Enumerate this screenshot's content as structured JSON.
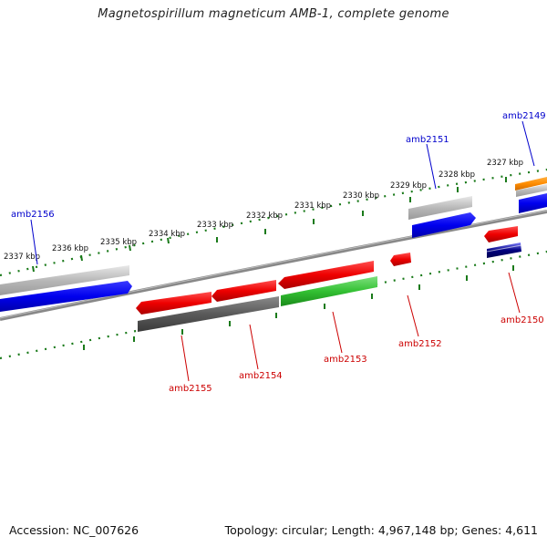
{
  "title": "Magnetospirillum magneticum AMB-1, complete genome",
  "footer": {
    "accession": "Accession: NC_007626",
    "summary": "Topology: circular; Length: 4,967,148 bp; Genes: 4,611"
  },
  "colors": {
    "forward_label": "#0000cc",
    "reverse_label": "#cc0000",
    "tick": "#1a7a1a",
    "backbone": "#888888"
  },
  "ticks": [
    "2337 kbp",
    "2336 kbp",
    "2335 kbp",
    "2334 kbp",
    "2333 kbp",
    "2332 kbp",
    "2331 kbp",
    "2330 kbp",
    "2329 kbp",
    "2328 kbp",
    "2327 kbp"
  ],
  "genes_top": [
    {
      "label": "amb2156"
    },
    {
      "label": "amb2151"
    },
    {
      "label": "amb2149"
    }
  ],
  "genes_bottom": [
    {
      "label": "amb2155"
    },
    {
      "label": "amb2154"
    },
    {
      "label": "amb2153"
    },
    {
      "label": "amb2152"
    },
    {
      "label": "amb2150"
    }
  ]
}
